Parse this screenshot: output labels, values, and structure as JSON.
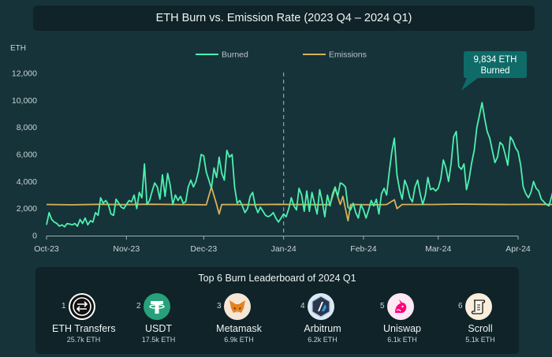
{
  "title": "ETH Burn vs. Emission Rate (2023 Q4 – 2024 Q1)",
  "colors": {
    "burned": "#4ef0b0",
    "emissions": "#d6b25a",
    "background": "#163339",
    "panel": "#0f2328",
    "callout": "#0f6b68"
  },
  "callout": {
    "line1": "9,834 ETH",
    "line2": "Burned"
  },
  "chart_data": {
    "type": "line",
    "title": "ETH Burn vs. Emission Rate (2023 Q4 – 2024 Q1)",
    "ylabel": "ETH",
    "xlabel": "",
    "ylim": [
      0,
      12000
    ],
    "yticks": [
      0,
      2000,
      4000,
      6000,
      8000,
      10000,
      12000
    ],
    "ytick_labels": [
      "0",
      "2,000",
      "4,000",
      "6,000",
      "8,000",
      "10,000",
      "12,000"
    ],
    "xticks": [
      0,
      31,
      61,
      92,
      123,
      152,
      183
    ],
    "xtick_labels": [
      "Oct-23",
      "Nov-23",
      "Dec-23",
      "Jan-24",
      "Feb-24",
      "Mar-24",
      "Apr-24"
    ],
    "x_unit": "days since Oct 1, 2023",
    "divider_x": 92,
    "legend": {
      "position": "top-center",
      "entries": [
        "Burned",
        "Emissions"
      ]
    },
    "grid": false,
    "series": [
      {
        "name": "Burned",
        "points": [
          [
            0,
            800
          ],
          [
            1,
            1700
          ],
          [
            2,
            1200
          ],
          [
            3,
            1000
          ],
          [
            4,
            900
          ],
          [
            5,
            700
          ],
          [
            6,
            800
          ],
          [
            7,
            650
          ],
          [
            8,
            900
          ],
          [
            9,
            850
          ],
          [
            10,
            800
          ],
          [
            11,
            900
          ],
          [
            12,
            700
          ],
          [
            13,
            1200
          ],
          [
            14,
            900
          ],
          [
            15,
            1300
          ],
          [
            16,
            800
          ],
          [
            17,
            1100
          ],
          [
            18,
            1000
          ],
          [
            19,
            1700
          ],
          [
            20,
            1500
          ],
          [
            21,
            2800
          ],
          [
            22,
            2400
          ],
          [
            23,
            2600
          ],
          [
            24,
            2300
          ],
          [
            25,
            1600
          ],
          [
            26,
            1500
          ],
          [
            27,
            2700
          ],
          [
            28,
            2400
          ],
          [
            29,
            2100
          ],
          [
            30,
            2000
          ],
          [
            31,
            2300
          ],
          [
            32,
            2600
          ],
          [
            33,
            2500
          ],
          [
            34,
            3000
          ],
          [
            35,
            2000
          ],
          [
            36,
            3200
          ],
          [
            37,
            2800
          ],
          [
            38,
            5300
          ],
          [
            39,
            2300
          ],
          [
            40,
            2600
          ],
          [
            41,
            3300
          ],
          [
            42,
            3900
          ],
          [
            43,
            3600
          ],
          [
            44,
            2700
          ],
          [
            45,
            4500
          ],
          [
            46,
            2900
          ],
          [
            47,
            4600
          ],
          [
            48,
            3700
          ],
          [
            49,
            2300
          ],
          [
            50,
            3000
          ],
          [
            51,
            2600
          ],
          [
            52,
            2900
          ],
          [
            53,
            2400
          ],
          [
            54,
            2500
          ],
          [
            55,
            3600
          ],
          [
            56,
            4100
          ],
          [
            57,
            3600
          ],
          [
            58,
            4000
          ],
          [
            59,
            4800
          ],
          [
            60,
            6000
          ],
          [
            61,
            5900
          ],
          [
            62,
            4700
          ],
          [
            63,
            4100
          ],
          [
            64,
            3500
          ],
          [
            65,
            5000
          ],
          [
            66,
            4300
          ],
          [
            67,
            5800
          ],
          [
            68,
            4600
          ],
          [
            69,
            4100
          ],
          [
            70,
            6300
          ],
          [
            71,
            5800
          ],
          [
            72,
            6000
          ],
          [
            73,
            3600
          ],
          [
            74,
            2400
          ],
          [
            75,
            2600
          ],
          [
            76,
            2200
          ],
          [
            77,
            1700
          ],
          [
            78,
            2000
          ],
          [
            79,
            2900
          ],
          [
            80,
            3200
          ],
          [
            81,
            2200
          ],
          [
            82,
            1700
          ],
          [
            83,
            2100
          ],
          [
            84,
            1800
          ],
          [
            85,
            1500
          ],
          [
            86,
            1400
          ],
          [
            87,
            1500
          ],
          [
            88,
            1700
          ],
          [
            89,
            1300
          ],
          [
            90,
            1000
          ],
          [
            91,
            1300
          ],
          [
            92,
            1600
          ],
          [
            93,
            1400
          ],
          [
            94,
            2000
          ],
          [
            95,
            2800
          ],
          [
            96,
            2200
          ],
          [
            97,
            1900
          ],
          [
            98,
            3500
          ],
          [
            99,
            3000
          ],
          [
            100,
            1800
          ],
          [
            101,
            3300
          ],
          [
            102,
            1800
          ],
          [
            103,
            3200
          ],
          [
            104,
            2400
          ],
          [
            105,
            1600
          ],
          [
            106,
            3400
          ],
          [
            107,
            2500
          ],
          [
            108,
            1400
          ],
          [
            109,
            3000
          ],
          [
            110,
            2200
          ],
          [
            111,
            3100
          ],
          [
            112,
            3600
          ],
          [
            113,
            2900
          ],
          [
            114,
            3900
          ],
          [
            115,
            3800
          ],
          [
            116,
            3600
          ],
          [
            117,
            2100
          ],
          [
            118,
            1900
          ],
          [
            119,
            2400
          ],
          [
            120,
            1700
          ],
          [
            121,
            1300
          ],
          [
            122,
            2300
          ],
          [
            123,
            1900
          ],
          [
            124,
            1300
          ],
          [
            125,
            1900
          ],
          [
            126,
            2600
          ],
          [
            127,
            2200
          ],
          [
            128,
            2700
          ],
          [
            129,
            1600
          ],
          [
            130,
            3100
          ],
          [
            131,
            3500
          ],
          [
            132,
            3000
          ],
          [
            133,
            4700
          ],
          [
            134,
            6200
          ],
          [
            135,
            7200
          ],
          [
            136,
            4500
          ],
          [
            137,
            3400
          ],
          [
            138,
            2700
          ],
          [
            139,
            4100
          ],
          [
            140,
            3600
          ],
          [
            141,
            2800
          ],
          [
            142,
            2500
          ],
          [
            143,
            3600
          ],
          [
            144,
            4100
          ],
          [
            145,
            3100
          ],
          [
            146,
            2300
          ],
          [
            147,
            3000
          ],
          [
            148,
            4300
          ],
          [
            149,
            3400
          ],
          [
            150,
            3500
          ],
          [
            151,
            3300
          ],
          [
            152,
            3500
          ],
          [
            153,
            4200
          ],
          [
            154,
            5600
          ],
          [
            155,
            5000
          ],
          [
            156,
            4000
          ],
          [
            157,
            5300
          ],
          [
            158,
            7300
          ],
          [
            159,
            7700
          ],
          [
            160,
            5100
          ],
          [
            161,
            4900
          ],
          [
            162,
            5300
          ],
          [
            163,
            3400
          ],
          [
            164,
            4200
          ],
          [
            165,
            5400
          ],
          [
            166,
            6300
          ],
          [
            167,
            8000
          ],
          [
            168,
            8900
          ],
          [
            169,
            9834
          ],
          [
            170,
            8700
          ],
          [
            171,
            7700
          ],
          [
            172,
            7200
          ],
          [
            173,
            6300
          ],
          [
            174,
            5400
          ],
          [
            175,
            5800
          ],
          [
            176,
            6900
          ],
          [
            177,
            6700
          ],
          [
            178,
            6000
          ],
          [
            179,
            5200
          ],
          [
            180,
            7300
          ],
          [
            181,
            7000
          ],
          [
            182,
            6500
          ],
          [
            183,
            6200
          ],
          [
            184,
            5200
          ],
          [
            185,
            3600
          ],
          [
            186,
            3100
          ],
          [
            187,
            2800
          ],
          [
            188,
            3200
          ],
          [
            189,
            4000
          ],
          [
            190,
            3500
          ],
          [
            191,
            3300
          ],
          [
            192,
            2700
          ],
          [
            193,
            2500
          ],
          [
            194,
            2300
          ],
          [
            195,
            2200
          ],
          [
            196,
            2900
          ],
          [
            197,
            3600
          ],
          [
            198,
            3300
          ],
          [
            199,
            2600
          ],
          [
            200,
            2400
          ],
          [
            201,
            2300
          ],
          [
            202,
            2600
          ],
          [
            203,
            2200
          ],
          [
            204,
            2400
          ],
          [
            205,
            2600
          ]
        ]
      },
      {
        "name": "Emissions",
        "points": [
          [
            0,
            2300
          ],
          [
            10,
            2280
          ],
          [
            20,
            2310
          ],
          [
            30,
            2290
          ],
          [
            40,
            2320
          ],
          [
            50,
            2300
          ],
          [
            62,
            2280
          ],
          [
            64,
            3600
          ],
          [
            66,
            2300
          ],
          [
            67,
            1600
          ],
          [
            68,
            2300
          ],
          [
            80,
            2290
          ],
          [
            90,
            2310
          ],
          [
            95,
            2300
          ],
          [
            105,
            2290
          ],
          [
            110,
            2290
          ],
          [
            112,
            3500
          ],
          [
            114,
            2300
          ],
          [
            115,
            2900
          ],
          [
            117,
            1100
          ],
          [
            118,
            2300
          ],
          [
            128,
            2280
          ],
          [
            132,
            2300
          ],
          [
            135,
            2650
          ],
          [
            136,
            2000
          ],
          [
            138,
            2300
          ],
          [
            150,
            2300
          ],
          [
            160,
            2330
          ],
          [
            170,
            2310
          ],
          [
            180,
            2300
          ],
          [
            190,
            2310
          ],
          [
            200,
            2300
          ],
          [
            205,
            2310
          ]
        ]
      }
    ]
  },
  "leaderboard": {
    "title": "Top 6 Burn Leaderboard of 2024 Q1",
    "items": [
      {
        "rank": "1",
        "name": "ETH Transfers",
        "value": "25.7k ETH",
        "icon": "transfer-arrows-icon"
      },
      {
        "rank": "2",
        "name": "USDT",
        "value": "17.5k ETH",
        "icon": "tether-icon"
      },
      {
        "rank": "3",
        "name": "Metamask",
        "value": "6.9k ETH",
        "icon": "fox-icon"
      },
      {
        "rank": "4",
        "name": "Arbitrum",
        "value": "6.2k ETH",
        "icon": "arbitrum-icon"
      },
      {
        "rank": "5",
        "name": "Uniswap",
        "value": "6.1k ETH",
        "icon": "unicorn-icon"
      },
      {
        "rank": "6",
        "name": "Scroll",
        "value": "5.1k ETH",
        "icon": "scroll-icon"
      }
    ]
  }
}
